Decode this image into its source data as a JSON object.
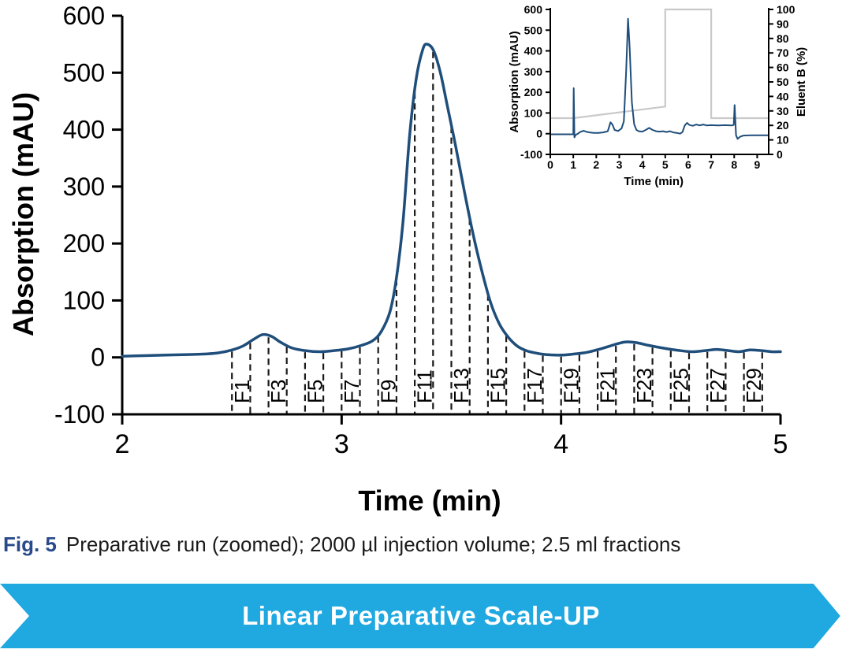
{
  "caption": {
    "fig_label": "Fig. 5",
    "text": "Preparative run (zoomed); 2000 µl injection volume; 2.5 ml fractions"
  },
  "banner": {
    "label": "Linear Preparative Scale-UP",
    "background_color": "#20A8E0",
    "text_color": "#FFFFFF"
  },
  "colors": {
    "curve_navy": "#1F4E7B",
    "eluent_gray": "#C9C9C9",
    "axis_black": "#000000",
    "fig_label_blue": "#28498B",
    "fraction_dash": "#1a1a1a"
  },
  "chart_data": [
    {
      "name": "preparative-run-zoomed",
      "type": "line",
      "title": "",
      "xlabel": "Time (min)",
      "ylabel": "Absorption (mAU)",
      "xlim": [
        2,
        5
      ],
      "ylim": [
        -100,
        600
      ],
      "xticks": [
        2,
        3,
        4,
        5
      ],
      "yticks": [
        -100,
        0,
        100,
        200,
        300,
        400,
        500,
        600
      ],
      "grid": false,
      "legend": false,
      "series": [
        {
          "name": "Absorption",
          "color": "#1F4E7B",
          "points": [
            [
              2.0,
              2
            ],
            [
              2.1,
              3
            ],
            [
              2.2,
              4
            ],
            [
              2.3,
              5
            ],
            [
              2.38,
              6
            ],
            [
              2.44,
              8
            ],
            [
              2.5,
              13
            ],
            [
              2.55,
              20
            ],
            [
              2.6,
              32
            ],
            [
              2.64,
              40
            ],
            [
              2.68,
              37
            ],
            [
              2.72,
              27
            ],
            [
              2.77,
              17
            ],
            [
              2.83,
              12
            ],
            [
              2.9,
              10
            ],
            [
              2.97,
              12
            ],
            [
              3.03,
              15
            ],
            [
              3.09,
              21
            ],
            [
              3.14,
              29
            ],
            [
              3.18,
              45
            ],
            [
              3.22,
              80
            ],
            [
              3.25,
              140
            ],
            [
              3.28,
              240
            ],
            [
              3.31,
              390
            ],
            [
              3.34,
              490
            ],
            [
              3.37,
              541
            ],
            [
              3.39,
              550
            ],
            [
              3.42,
              538
            ],
            [
              3.45,
              500
            ],
            [
              3.48,
              445
            ],
            [
              3.52,
              370
            ],
            [
              3.56,
              290
            ],
            [
              3.6,
              215
            ],
            [
              3.64,
              150
            ],
            [
              3.68,
              95
            ],
            [
              3.72,
              58
            ],
            [
              3.76,
              35
            ],
            [
              3.8,
              20
            ],
            [
              3.84,
              12
            ],
            [
              3.88,
              8
            ],
            [
              3.93,
              5
            ],
            [
              4.0,
              4
            ],
            [
              4.06,
              6
            ],
            [
              4.12,
              9
            ],
            [
              4.18,
              15
            ],
            [
              4.24,
              22
            ],
            [
              4.29,
              27
            ],
            [
              4.34,
              26
            ],
            [
              4.4,
              21
            ],
            [
              4.47,
              16
            ],
            [
              4.54,
              12
            ],
            [
              4.6,
              10
            ],
            [
              4.66,
              12
            ],
            [
              4.71,
              14
            ],
            [
              4.76,
              12
            ],
            [
              4.81,
              10
            ],
            [
              4.86,
              13
            ],
            [
              4.91,
              12
            ],
            [
              4.96,
              10
            ],
            [
              5.0,
              10
            ]
          ]
        }
      ],
      "fractions": {
        "first_boundary_min": 2.5,
        "width_min": 0.0833333,
        "boundary_count": 30,
        "volume_ml": 2.5,
        "labels": [
          "F1",
          "F3",
          "F5",
          "F7",
          "F9",
          "F11",
          "F13",
          "F15",
          "F17",
          "F19",
          "F21",
          "F23",
          "F25",
          "F27",
          "F29"
        ]
      }
    },
    {
      "name": "full-run-overview-inset",
      "type": "line",
      "title": "",
      "xlabel": "Time (min)",
      "ylabel_left": "Absorption (mAU)",
      "ylabel_right": "Eluent B (%)",
      "xlim": [
        0,
        9.5
      ],
      "ylim_left": [
        -100,
        600
      ],
      "ylim_right": [
        0,
        100
      ],
      "xticks": [
        0,
        1,
        2,
        3,
        4,
        5,
        6,
        7,
        8,
        9
      ],
      "yticks_left": [
        -100,
        0,
        100,
        200,
        300,
        400,
        500,
        600
      ],
      "yticks_right": [
        0,
        10,
        20,
        30,
        40,
        50,
        60,
        70,
        80,
        90,
        100
      ],
      "grid": false,
      "legend": false,
      "series": [
        {
          "name": "Eluent B",
          "axis": "right",
          "color": "#C9C9C9",
          "points": [
            [
              0,
              25
            ],
            [
              1,
              25
            ],
            [
              5,
              33
            ],
            [
              5,
              100
            ],
            [
              7,
              100
            ],
            [
              7,
              25
            ],
            [
              9.5,
              25
            ]
          ]
        },
        {
          "name": "Absorption",
          "axis": "left",
          "color": "#1F4E7B",
          "points": [
            [
              0,
              -3
            ],
            [
              0.5,
              -3
            ],
            [
              0.97,
              -3
            ],
            [
              1.0,
              -3
            ],
            [
              1.02,
              220
            ],
            [
              1.05,
              -18
            ],
            [
              1.1,
              -6
            ],
            [
              1.2,
              0
            ],
            [
              1.3,
              8
            ],
            [
              1.45,
              14
            ],
            [
              1.55,
              10
            ],
            [
              1.7,
              6
            ],
            [
              1.9,
              4
            ],
            [
              2.1,
              4
            ],
            [
              2.3,
              6
            ],
            [
              2.5,
              12
            ],
            [
              2.62,
              55
            ],
            [
              2.7,
              45
            ],
            [
              2.8,
              18
            ],
            [
              2.95,
              13
            ],
            [
              3.1,
              25
            ],
            [
              3.2,
              60
            ],
            [
              3.3,
              300
            ],
            [
              3.38,
              555
            ],
            [
              3.45,
              420
            ],
            [
              3.55,
              150
            ],
            [
              3.65,
              45
            ],
            [
              3.75,
              18
            ],
            [
              3.85,
              12
            ],
            [
              4.0,
              10
            ],
            [
              4.15,
              18
            ],
            [
              4.3,
              28
            ],
            [
              4.45,
              18
            ],
            [
              4.6,
              12
            ],
            [
              4.75,
              10
            ],
            [
              4.9,
              12
            ],
            [
              5.05,
              8
            ],
            [
              5.2,
              12
            ],
            [
              5.35,
              6
            ],
            [
              5.5,
              4
            ],
            [
              5.65,
              0
            ],
            [
              5.75,
              8
            ],
            [
              5.85,
              40
            ],
            [
              5.95,
              52
            ],
            [
              6.05,
              42
            ],
            [
              6.2,
              38
            ],
            [
              6.35,
              44
            ],
            [
              6.5,
              40
            ],
            [
              6.65,
              44
            ],
            [
              6.8,
              40
            ],
            [
              7.0,
              41
            ],
            [
              7.3,
              40
            ],
            [
              7.6,
              41
            ],
            [
              7.9,
              40
            ],
            [
              7.98,
              42
            ],
            [
              8.02,
              138
            ],
            [
              8.08,
              -8
            ],
            [
              8.15,
              -25
            ],
            [
              8.25,
              -15
            ],
            [
              8.4,
              -9
            ],
            [
              8.7,
              -8
            ],
            [
              9.0,
              -8
            ],
            [
              9.5,
              -8
            ]
          ]
        }
      ]
    }
  ]
}
